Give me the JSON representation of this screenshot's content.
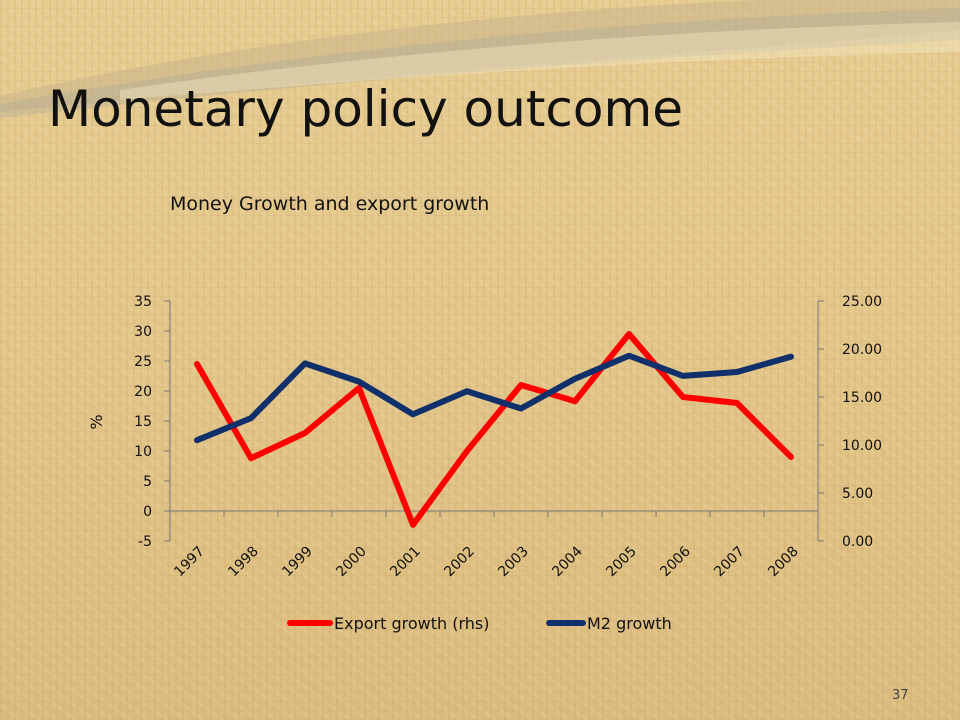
{
  "slide": {
    "title": "Monetary policy outcome",
    "page_number": "37"
  },
  "colors": {
    "export_line": "#ff0000",
    "m2_line": "#10306b",
    "axis": "#777777",
    "text": "#111111"
  },
  "chart_data": {
    "type": "line",
    "title": "Money Growth and export growth",
    "xlabel": "",
    "ylabel": "%",
    "ylabel_right": "",
    "categories": [
      "1997",
      "1998",
      "1999",
      "2000",
      "2001",
      "2002",
      "2003",
      "2004",
      "2005",
      "2006",
      "2007",
      "2008"
    ],
    "y_left": {
      "min": -5,
      "max": 35,
      "step": 5,
      "ticks": [
        "-5",
        "0",
        "5",
        "10",
        "15",
        "20",
        "25",
        "30",
        "35"
      ]
    },
    "y_right": {
      "min": 0,
      "max": 25,
      "step": 5,
      "ticks": [
        "0.00",
        "5.00",
        "10.00",
        "15.00",
        "20.00",
        "25.00"
      ]
    },
    "grid": false,
    "legend_position": "bottom",
    "series": [
      {
        "name": "Export growth (rhs)",
        "axis": "left",
        "values": [
          24.5,
          8.8,
          13.0,
          20.5,
          -2.3,
          10.0,
          21.0,
          18.3,
          29.5,
          19.0,
          18.0,
          9.0
        ]
      },
      {
        "name": "M2 growth",
        "axis": "right",
        "values": [
          10.5,
          12.8,
          18.5,
          16.6,
          13.2,
          15.6,
          13.8,
          16.9,
          19.3,
          17.2,
          17.6,
          19.2
        ]
      }
    ]
  }
}
